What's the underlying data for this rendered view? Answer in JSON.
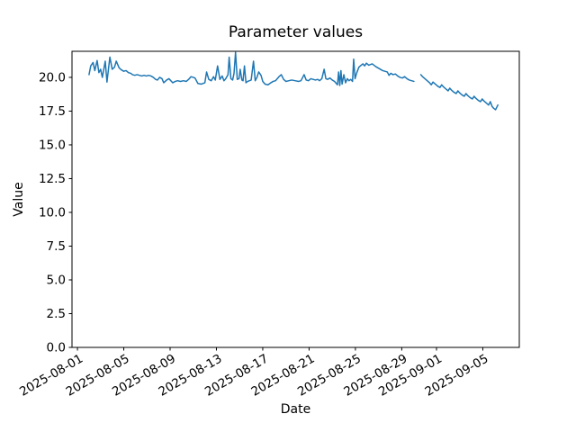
{
  "chart_data": {
    "type": "line",
    "title": "Parameter values",
    "xlabel": "Date",
    "ylabel": "Value",
    "grid": false,
    "legend": "none",
    "line_color": "#1f77b4",
    "axis_color": "#000000",
    "background_color": "#ffffff",
    "x_unit": "days since 2025-08-01",
    "xlim": [
      -0.47,
      38.15
    ],
    "ylim": [
      0,
      21.93
    ],
    "x_ticks": [
      {
        "day": 0,
        "label": "2025-08-01"
      },
      {
        "day": 4,
        "label": "2025-08-05"
      },
      {
        "day": 8,
        "label": "2025-08-09"
      },
      {
        "day": 12,
        "label": "2025-08-13"
      },
      {
        "day": 16,
        "label": "2025-08-17"
      },
      {
        "day": 20,
        "label": "2025-08-21"
      },
      {
        "day": 24,
        "label": "2025-08-25"
      },
      {
        "day": 28,
        "label": "2025-08-29"
      },
      {
        "day": 31,
        "label": "2025-09-01"
      },
      {
        "day": 35,
        "label": "2025-09-05"
      }
    ],
    "y_ticks": [
      {
        "value": 0,
        "label": "0.0"
      },
      {
        "value": 2.5,
        "label": "2.5"
      },
      {
        "value": 5,
        "label": "5.0"
      },
      {
        "value": 7.5,
        "label": "7.5"
      },
      {
        "value": 10,
        "label": "10.0"
      },
      {
        "value": 12.5,
        "label": "12.5"
      },
      {
        "value": 15,
        "label": "15.0"
      },
      {
        "value": 17.5,
        "label": "17.5"
      },
      {
        "value": 20,
        "label": "20.0"
      }
    ],
    "series": [
      {
        "name": "Parameter value",
        "points": [
          [
            1.0,
            20.2
          ],
          [
            1.15,
            20.85
          ],
          [
            1.35,
            21.1
          ],
          [
            1.5,
            20.5
          ],
          [
            1.7,
            21.25
          ],
          [
            1.85,
            20.35
          ],
          [
            2.0,
            20.6
          ],
          [
            2.15,
            20.0
          ],
          [
            2.4,
            21.2
          ],
          [
            2.55,
            19.65
          ],
          [
            2.8,
            21.5
          ],
          [
            3.0,
            20.6
          ],
          [
            3.2,
            20.75
          ],
          [
            3.35,
            21.2
          ],
          [
            3.5,
            20.9
          ],
          [
            3.6,
            20.7
          ],
          [
            3.8,
            20.55
          ],
          [
            4.0,
            20.45
          ],
          [
            4.2,
            20.5
          ],
          [
            4.4,
            20.35
          ],
          [
            4.6,
            20.3
          ],
          [
            4.75,
            20.2
          ],
          [
            4.95,
            20.15
          ],
          [
            5.15,
            20.2
          ],
          [
            5.35,
            20.15
          ],
          [
            5.55,
            20.1
          ],
          [
            5.75,
            20.15
          ],
          [
            5.95,
            20.1
          ],
          [
            6.15,
            20.15
          ],
          [
            6.35,
            20.1
          ],
          [
            6.55,
            20.0
          ],
          [
            6.75,
            19.85
          ],
          [
            6.9,
            19.8
          ],
          [
            7.1,
            20.0
          ],
          [
            7.3,
            19.9
          ],
          [
            7.45,
            19.6
          ],
          [
            7.7,
            19.8
          ],
          [
            7.9,
            19.9
          ],
          [
            8.23,
            19.6
          ],
          [
            8.45,
            19.7
          ],
          [
            8.65,
            19.75
          ],
          [
            8.9,
            19.7
          ],
          [
            9.15,
            19.75
          ],
          [
            9.4,
            19.7
          ],
          [
            9.6,
            19.85
          ],
          [
            9.8,
            20.05
          ],
          [
            10.0,
            20.0
          ],
          [
            10.15,
            19.95
          ],
          [
            10.4,
            19.55
          ],
          [
            10.7,
            19.5
          ],
          [
            11.0,
            19.6
          ],
          [
            11.15,
            20.4
          ],
          [
            11.34,
            19.85
          ],
          [
            11.55,
            19.75
          ],
          [
            11.75,
            20.05
          ],
          [
            11.9,
            19.8
          ],
          [
            12.1,
            20.85
          ],
          [
            12.3,
            19.85
          ],
          [
            12.5,
            20.1
          ],
          [
            12.65,
            19.75
          ],
          [
            12.8,
            19.9
          ],
          [
            13.0,
            20.2
          ],
          [
            13.1,
            21.5
          ],
          [
            13.25,
            19.9
          ],
          [
            13.4,
            19.8
          ],
          [
            13.52,
            20.3
          ],
          [
            13.65,
            21.85
          ],
          [
            13.8,
            19.85
          ],
          [
            13.95,
            19.9
          ],
          [
            14.05,
            20.6
          ],
          [
            14.2,
            19.8
          ],
          [
            14.3,
            19.75
          ],
          [
            14.42,
            20.85
          ],
          [
            14.55,
            19.6
          ],
          [
            14.7,
            19.7
          ],
          [
            14.85,
            19.75
          ],
          [
            15.0,
            19.8
          ],
          [
            15.2,
            21.2
          ],
          [
            15.35,
            19.75
          ],
          [
            15.5,
            20.0
          ],
          [
            15.65,
            20.4
          ],
          [
            15.85,
            20.15
          ],
          [
            16.0,
            19.7
          ],
          [
            16.2,
            19.5
          ],
          [
            16.45,
            19.45
          ],
          [
            16.7,
            19.6
          ],
          [
            16.9,
            19.7
          ],
          [
            17.1,
            19.75
          ],
          [
            17.4,
            20.05
          ],
          [
            17.6,
            20.2
          ],
          [
            17.8,
            19.85
          ],
          [
            18.0,
            19.7
          ],
          [
            18.25,
            19.75
          ],
          [
            18.5,
            19.8
          ],
          [
            18.8,
            19.75
          ],
          [
            19.1,
            19.7
          ],
          [
            19.3,
            19.75
          ],
          [
            19.57,
            20.2
          ],
          [
            19.75,
            19.8
          ],
          [
            19.95,
            19.75
          ],
          [
            20.15,
            19.9
          ],
          [
            20.35,
            19.85
          ],
          [
            20.55,
            19.8
          ],
          [
            20.75,
            19.85
          ],
          [
            20.9,
            19.75
          ],
          [
            21.1,
            19.9
          ],
          [
            21.3,
            20.6
          ],
          [
            21.45,
            19.9
          ],
          [
            21.6,
            19.85
          ],
          [
            21.8,
            19.95
          ],
          [
            22.0,
            19.8
          ],
          [
            22.2,
            19.7
          ],
          [
            22.45,
            19.45
          ],
          [
            22.55,
            20.4
          ],
          [
            22.65,
            19.4
          ],
          [
            22.75,
            20.5
          ],
          [
            22.85,
            19.5
          ],
          [
            23.0,
            20.2
          ],
          [
            23.15,
            19.6
          ],
          [
            23.3,
            19.9
          ],
          [
            23.45,
            19.75
          ],
          [
            23.6,
            19.85
          ],
          [
            23.75,
            19.7
          ],
          [
            23.85,
            21.35
          ],
          [
            23.97,
            19.9
          ],
          [
            24.1,
            20.3
          ],
          [
            24.3,
            20.75
          ],
          [
            24.5,
            20.9
          ],
          [
            24.65,
            21.0
          ],
          [
            24.8,
            20.85
          ],
          [
            24.95,
            21.05
          ],
          [
            25.15,
            20.9
          ],
          [
            25.3,
            20.95
          ],
          [
            25.45,
            21.0
          ],
          [
            25.6,
            20.9
          ],
          [
            25.75,
            20.8
          ],
          [
            25.95,
            20.7
          ],
          [
            26.15,
            20.6
          ],
          [
            26.35,
            20.5
          ],
          [
            26.55,
            20.45
          ],
          [
            26.75,
            20.4
          ],
          [
            26.9,
            20.15
          ],
          [
            27.05,
            20.3
          ],
          [
            27.25,
            20.2
          ],
          [
            27.45,
            20.25
          ],
          [
            27.65,
            20.1
          ],
          [
            27.85,
            20.0
          ],
          [
            28.05,
            19.95
          ],
          [
            28.25,
            20.05
          ],
          [
            28.45,
            19.9
          ],
          [
            28.65,
            19.8
          ],
          [
            28.85,
            19.75
          ],
          [
            29.05,
            19.7
          ],
          null,
          [
            29.65,
            20.2
          ],
          [
            29.8,
            20.05
          ],
          [
            30.0,
            19.9
          ],
          [
            30.2,
            19.75
          ],
          [
            30.4,
            19.6
          ],
          [
            30.55,
            19.45
          ],
          [
            30.7,
            19.65
          ],
          [
            30.9,
            19.5
          ],
          [
            31.1,
            19.35
          ],
          [
            31.3,
            19.25
          ],
          [
            31.45,
            19.45
          ],
          [
            31.6,
            19.3
          ],
          [
            31.8,
            19.15
          ],
          [
            32.0,
            19.0
          ],
          [
            32.15,
            19.2
          ],
          [
            32.3,
            19.05
          ],
          [
            32.5,
            18.9
          ],
          [
            32.7,
            18.8
          ],
          [
            32.85,
            19.0
          ],
          [
            33.0,
            18.85
          ],
          [
            33.2,
            18.7
          ],
          [
            33.4,
            18.6
          ],
          [
            33.55,
            18.8
          ],
          [
            33.7,
            18.65
          ],
          [
            33.9,
            18.5
          ],
          [
            34.1,
            18.4
          ],
          [
            34.25,
            18.6
          ],
          [
            34.4,
            18.45
          ],
          [
            34.6,
            18.3
          ],
          [
            34.8,
            18.2
          ],
          [
            34.95,
            18.4
          ],
          [
            35.1,
            18.25
          ],
          [
            35.3,
            18.1
          ],
          [
            35.5,
            17.95
          ],
          [
            35.65,
            18.2
          ],
          [
            35.8,
            17.85
          ],
          [
            35.95,
            17.7
          ],
          [
            36.1,
            17.6
          ],
          [
            36.3,
            17.95
          ]
        ]
      }
    ]
  }
}
